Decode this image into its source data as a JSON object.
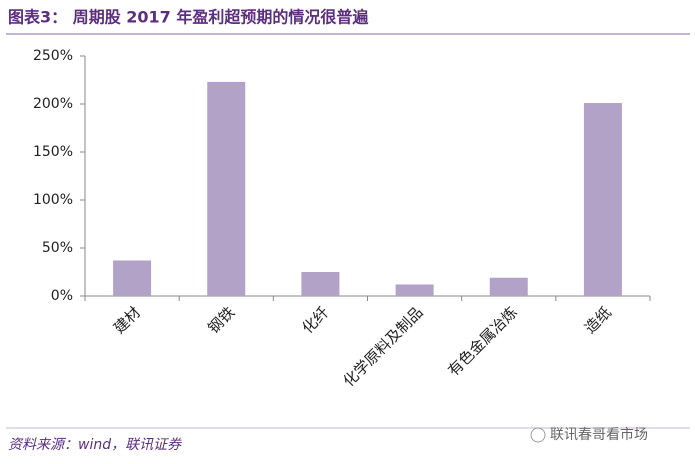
{
  "chart_data": {
    "type": "bar",
    "title": "图表3：  周期股 2017 年盈利超预期的情况很普遍",
    "categories": [
      "建材",
      "钢铁",
      "化纤",
      "化学原料及制品",
      "有色金属冶炼",
      "造纸"
    ],
    "values": [
      37,
      223,
      25,
      12,
      19,
      201
    ],
    "color": "#b3a2c7",
    "ylim": [
      0,
      250
    ],
    "yticks": [
      {
        "value": 0,
        "label": "0%"
      },
      {
        "value": 50,
        "label": "50%"
      },
      {
        "value": 100,
        "label": "100%"
      },
      {
        "value": 150,
        "label": "150%"
      },
      {
        "value": 200,
        "label": "200%"
      },
      {
        "value": 250,
        "label": "250%"
      }
    ],
    "grid": false,
    "source": "资料来源：wind，联讯证券",
    "watermark": "联讯春哥看市场"
  }
}
